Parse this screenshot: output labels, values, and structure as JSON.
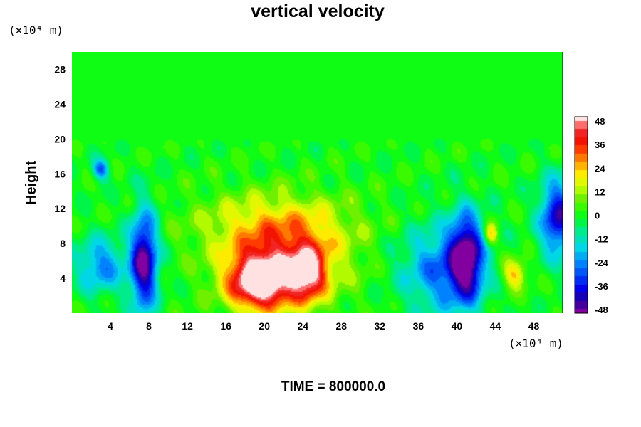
{
  "chart_data": {
    "type": "heatmap",
    "title": "vertical velocity",
    "ylabel": "Height",
    "xlabel": "",
    "x_unit": "(×10⁴ m)",
    "y_unit": "(×10⁴ m)",
    "time_label": "TIME = 800000.0",
    "xlim": [
      0,
      51
    ],
    "ylim": [
      0,
      30
    ],
    "x_ticks": [
      4,
      8,
      12,
      16,
      20,
      24,
      28,
      32,
      36,
      40,
      44,
      48
    ],
    "y_ticks": [
      4,
      8,
      12,
      16,
      20,
      24,
      28
    ],
    "colorbar": {
      "min": -48,
      "max": 48,
      "ticks": [
        48,
        36,
        24,
        12,
        0,
        -12,
        -24,
        -36,
        -48
      ]
    },
    "features": [
      {
        "kind": "updraft",
        "x": 19.5,
        "y": 3.5,
        "peak": 48,
        "sx": 2.2,
        "sy": 2.2
      },
      {
        "kind": "updraft",
        "x": 22.0,
        "y": 6.0,
        "peak": 28,
        "sx": 4.5,
        "sy": 3.5
      },
      {
        "kind": "updraft",
        "x": 24.5,
        "y": 4.5,
        "peak": 34,
        "sx": 1.3,
        "sy": 2.2
      },
      {
        "kind": "updraft",
        "x": 21.0,
        "y": 10.5,
        "peak": 14,
        "sx": 6.0,
        "sy": 2.5
      },
      {
        "kind": "downdraft",
        "x": 7.5,
        "y": 6.0,
        "peak": -48,
        "sx": 1.0,
        "sy": 4.0
      },
      {
        "kind": "downdraft",
        "x": 41.0,
        "y": 6.5,
        "peak": -44,
        "sx": 1.2,
        "sy": 3.5
      },
      {
        "kind": "downdraft",
        "x": 38.5,
        "y": 5.0,
        "peak": -26,
        "sx": 3.0,
        "sy": 3.5
      },
      {
        "kind": "downdraft",
        "x": 50.5,
        "y": 11.0,
        "peak": -40,
        "sx": 1.3,
        "sy": 3.0
      },
      {
        "kind": "downdraft",
        "x": 3.0,
        "y": 5.5,
        "peak": -24,
        "sx": 1.8,
        "sy": 2.2
      },
      {
        "kind": "downdraft",
        "x": 3.0,
        "y": 16.5,
        "peak": -28,
        "sx": 0.6,
        "sy": 0.8
      },
      {
        "kind": "updraft",
        "x": 46.0,
        "y": 4.5,
        "peak": 24,
        "sx": 0.9,
        "sy": 1.2
      },
      {
        "kind": "updraft",
        "x": 43.5,
        "y": 9.0,
        "peak": 26,
        "sx": 0.5,
        "sy": 0.9
      }
    ]
  }
}
